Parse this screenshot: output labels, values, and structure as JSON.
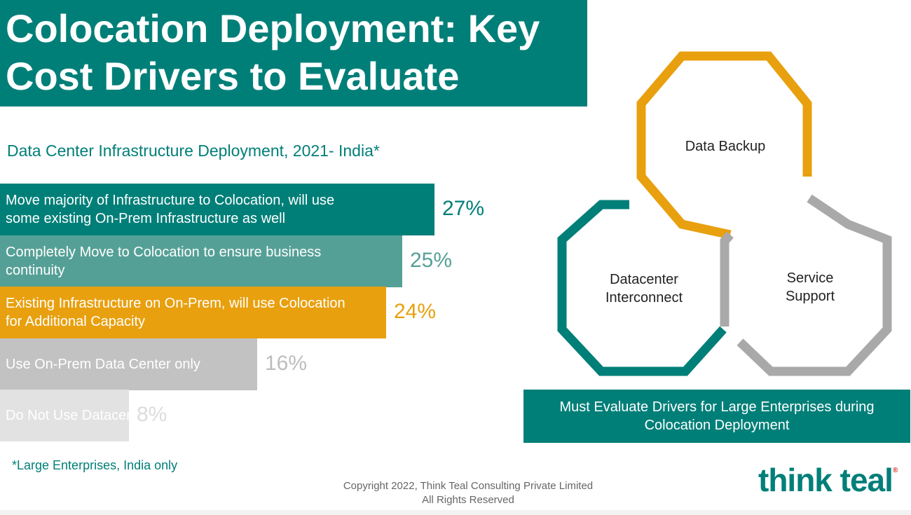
{
  "title": {
    "line1": "Colocation Deployment: Key",
    "line2": "Cost Drivers to Evaluate"
  },
  "chart_data": {
    "type": "bar",
    "orientation": "horizontal",
    "title": "Data Center Infrastructure Deployment, 2021- India*",
    "categories": [
      "Move majority of Infrastructure to Colocation, will use some existing On-Prem Infrastructure as well",
      "Completely Move to Colocation to ensure business continuity",
      "Existing Infrastructure on On-Prem, will use Colocation for Additional Capacity",
      "Use On-Prem Data Center only",
      "Do Not Use Datacenter"
    ],
    "label_lines": [
      [
        "Move majority of Infrastructure to Colocation, will use",
        "some existing On-Prem Infrastructure as well"
      ],
      [
        "Completely Move to Colocation to ensure business",
        "continuity"
      ],
      [
        "Existing Infrastructure on On-Prem, will use Colocation",
        "for Additional Capacity"
      ],
      [
        "Use On-Prem Data Center only"
      ],
      [
        "Do Not Use Datacenter"
      ]
    ],
    "values": [
      27,
      25,
      24,
      16,
      8
    ],
    "value_labels": [
      "27%",
      "25%",
      "24%",
      "16%",
      "8%"
    ],
    "unit": "%",
    "colors": [
      "#007f78",
      "#55a096",
      "#e8a00f",
      "#c2c2c2",
      "#e2e2e2"
    ],
    "value_colors": [
      "#007f78",
      "#55a096",
      "#e8a00f",
      "#bdbdbd",
      "#dcdcdc"
    ]
  },
  "footnote": "*Large Enterprises, India only",
  "copyright": {
    "line1": "Copyright 2022, Think Teal Consulting Private Limited",
    "line2": "All Rights Reserved"
  },
  "logo": {
    "text": "think teal",
    "mark": "®"
  },
  "diagram": {
    "hexagons": [
      {
        "lines": [
          "Data Backup"
        ],
        "color": "#e8a00f"
      },
      {
        "lines": [
          "Datacenter",
          "Interconnect"
        ],
        "color": "#007f78"
      },
      {
        "lines": [
          "Service",
          "Support"
        ],
        "color": "#a9a9a9"
      }
    ],
    "callout_lines": [
      "Must Evaluate Drivers for Large Enterprises during",
      "Colocation Deployment"
    ]
  }
}
